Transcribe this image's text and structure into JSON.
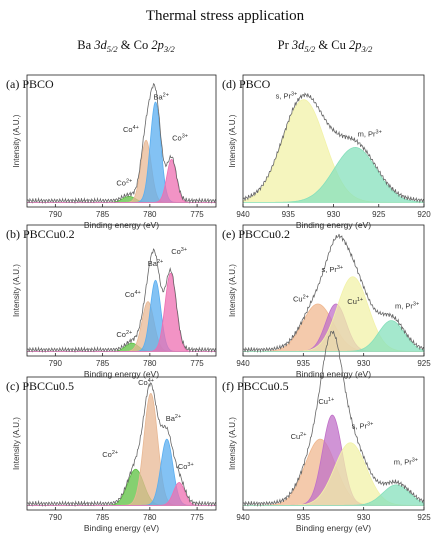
{
  "figure": {
    "title": "Thermal stress application",
    "col_left_header": "Ba 3d5/2 & Co 2p3/2",
    "col_right_header": "Pr 3d5/2 & Cu 2p3/2"
  },
  "colors": {
    "Co2+": "#5cc040",
    "Co4+": "#e8b894",
    "Ba2+": "#5aaef0",
    "Co3+": "#ee6fb2",
    "s_Pr3+": "#f2f2a8",
    "m_Pr3+": "#86e0bc",
    "Cu2+": "#f0b890",
    "Cu1+": "#c070c8",
    "envelope": "#666666"
  },
  "chart_data": [
    {
      "type": "area",
      "panel": "(a)",
      "sample": "PBCO",
      "xlabel": "Binding energy (eV)",
      "ylabel": "Intensity (A.U.)",
      "xlim": [
        793,
        773
      ],
      "xticks": [
        "790",
        "785",
        "780",
        "775"
      ],
      "series": [
        {
          "name": "Co2+",
          "center": 782.2,
          "fwhm": 1.6,
          "height": 0.05
        },
        {
          "name": "Co4+",
          "center": 780.4,
          "fwhm": 1.3,
          "height": 0.52
        },
        {
          "name": "Ba2+",
          "center": 779.4,
          "fwhm": 1.3,
          "height": 0.84
        },
        {
          "name": "Co3+",
          "center": 777.7,
          "fwhm": 1.2,
          "height": 0.36
        }
      ],
      "labels": [
        {
          "text": "Co2+",
          "x": 782.7,
          "y": 0.14
        },
        {
          "text": "Co4+",
          "x": 782.0,
          "y": 0.59
        },
        {
          "text": "Ba2+",
          "x": 778.8,
          "y": 0.86
        },
        {
          "text": "Co3+",
          "x": 776.8,
          "y": 0.52
        }
      ]
    },
    {
      "type": "area",
      "panel": "(b)",
      "sample": "PBCCu0.2",
      "xlabel": "Binding energy (eV)",
      "ylabel": "Intensity (A.U.)",
      "xlim": [
        793,
        773
      ],
      "xticks": [
        "790",
        "785",
        "780",
        "775"
      ],
      "series": [
        {
          "name": "Co2+",
          "center": 781.9,
          "fwhm": 1.6,
          "height": 0.07
        },
        {
          "name": "Co4+",
          "center": 780.2,
          "fwhm": 1.5,
          "height": 0.42
        },
        {
          "name": "Ba2+",
          "center": 779.4,
          "fwhm": 1.3,
          "height": 0.6
        },
        {
          "name": "Co3+",
          "center": 777.8,
          "fwhm": 1.4,
          "height": 0.66
        }
      ],
      "labels": [
        {
          "text": "Co2+",
          "x": 782.7,
          "y": 0.12
        },
        {
          "text": "Co4+",
          "x": 781.8,
          "y": 0.46
        },
        {
          "text": "Ba2+",
          "x": 779.4,
          "y": 0.72
        },
        {
          "text": "Co3+",
          "x": 776.9,
          "y": 0.82
        }
      ]
    },
    {
      "type": "area",
      "panel": "(c)",
      "sample": "PBCCu0.5",
      "xlabel": "Binding energy (eV)",
      "ylabel": "Intensity (A.U.)",
      "xlim": [
        793,
        773
      ],
      "xticks": [
        "790",
        "785",
        "780",
        "775"
      ],
      "series": [
        {
          "name": "Co2+",
          "center": 781.5,
          "fwhm": 2.0,
          "height": 0.3
        },
        {
          "name": "Co4+",
          "center": 779.9,
          "fwhm": 1.7,
          "height": 0.93
        },
        {
          "name": "Ba2+",
          "center": 778.2,
          "fwhm": 1.5,
          "height": 0.55
        },
        {
          "name": "Co3+",
          "center": 776.9,
          "fwhm": 1.4,
          "height": 0.19
        }
      ],
      "labels": [
        {
          "text": "Co2+",
          "x": 784.2,
          "y": 0.4
        },
        {
          "text": "Co4+",
          "x": 780.4,
          "y": 1.0
        },
        {
          "text": "Ba2+",
          "x": 777.5,
          "y": 0.7
        },
        {
          "text": "Co3+",
          "x": 776.2,
          "y": 0.3
        }
      ]
    },
    {
      "type": "area",
      "panel": "(d)",
      "sample": "PBCO",
      "xlabel": "Binding energy (eV)",
      "ylabel": "Intensity (A.U.)",
      "xlim": [
        940,
        920
      ],
      "xticks": [
        "940",
        "935",
        "930",
        "925",
        "920"
      ],
      "series": [
        {
          "name": "s_Pr3+",
          "center": 933.3,
          "fwhm": 5.5,
          "height": 0.86
        },
        {
          "name": "m_Pr3+",
          "center": 927.6,
          "fwhm": 5.5,
          "height": 0.46
        }
      ],
      "labels": [
        {
          "text": "s, Pr3+",
          "x": 935.2,
          "y": 0.87
        },
        {
          "text": "m, Pr3+",
          "x": 926.0,
          "y": 0.55
        }
      ]
    },
    {
      "type": "area",
      "panel": "(e)",
      "sample": "PBCCu0.2",
      "xlabel": "Binding energy (eV)",
      "ylabel": "Intensity (A.U.)",
      "xlim": [
        940,
        925
      ],
      "xticks": [
        "940",
        "935",
        "930",
        "925"
      ],
      "series": [
        {
          "name": "Cu2+",
          "center": 933.8,
          "fwhm": 3.0,
          "height": 0.4
        },
        {
          "name": "Cu1+",
          "center": 932.3,
          "fwhm": 2.0,
          "height": 0.4
        },
        {
          "name": "s_Pr3+",
          "center": 930.9,
          "fwhm": 3.0,
          "height": 0.63
        },
        {
          "name": "m_Pr3+",
          "center": 927.7,
          "fwhm": 2.5,
          "height": 0.26
        }
      ],
      "labels": [
        {
          "text": "Cu2+",
          "x": 935.2,
          "y": 0.42
        },
        {
          "text": "s, Pr3+",
          "x": 932.6,
          "y": 0.67
        },
        {
          "text": "Cu1+",
          "x": 930.7,
          "y": 0.4
        },
        {
          "text": "m, Pr3+",
          "x": 926.4,
          "y": 0.36
        }
      ]
    },
    {
      "type": "area",
      "panel": "(f)",
      "sample": "PBCCu0.5",
      "xlabel": "Binding energy (eV)",
      "ylabel": "Intensity (A.U.)",
      "xlim": [
        940,
        925
      ],
      "xticks": [
        "940",
        "935",
        "930",
        "925"
      ],
      "series": [
        {
          "name": "Cu2+",
          "center": 933.6,
          "fwhm": 3.0,
          "height": 0.55
        },
        {
          "name": "Cu1+",
          "center": 932.6,
          "fwhm": 1.9,
          "height": 0.75
        },
        {
          "name": "s_Pr3+",
          "center": 931.1,
          "fwhm": 3.1,
          "height": 0.52
        },
        {
          "name": "m_Pr3+",
          "center": 927.3,
          "fwhm": 2.6,
          "height": 0.17
        }
      ],
      "labels": [
        {
          "text": "Cu2+",
          "x": 935.4,
          "y": 0.55
        },
        {
          "text": "Cu1+",
          "x": 933.1,
          "y": 0.84
        },
        {
          "text": "s, Pr3+",
          "x": 930.1,
          "y": 0.64
        },
        {
          "text": "m, Pr3+",
          "x": 926.5,
          "y": 0.34
        }
      ]
    }
  ]
}
